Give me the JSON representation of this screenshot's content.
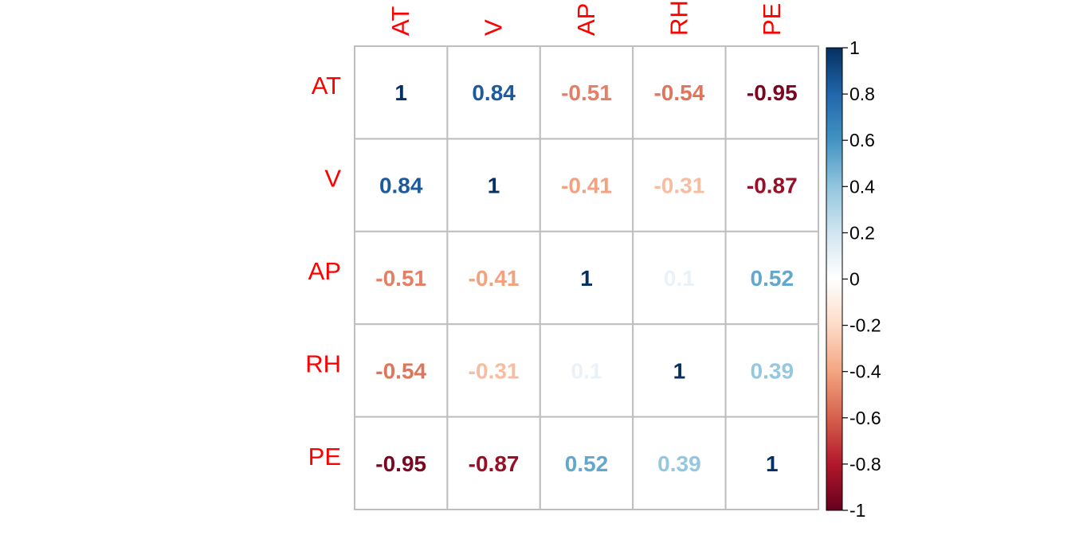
{
  "chart_data": {
    "type": "heatmap",
    "variables": [
      "AT",
      "V",
      "AP",
      "RH",
      "PE"
    ],
    "matrix": [
      [
        1,
        0.84,
        -0.51,
        -0.54,
        -0.95
      ],
      [
        0.84,
        1,
        -0.41,
        -0.31,
        -0.87
      ],
      [
        -0.51,
        -0.41,
        1,
        0.1,
        0.52
      ],
      [
        -0.54,
        -0.31,
        0.1,
        1,
        0.39
      ],
      [
        -0.95,
        -0.87,
        0.52,
        0.39,
        1
      ]
    ],
    "cell_labels": [
      [
        "1",
        "0.84",
        "-0.51",
        "-0.54",
        "-0.95"
      ],
      [
        "0.84",
        "1",
        "-0.41",
        "-0.31",
        "-0.87"
      ],
      [
        "-0.51",
        "-0.41",
        "1",
        "0.1",
        "0.52"
      ],
      [
        "-0.54",
        "-0.31",
        "0.1",
        "1",
        "0.39"
      ],
      [
        "-0.95",
        "-0.87",
        "0.52",
        "0.39",
        "1"
      ]
    ],
    "colorbar": {
      "range": [
        -1,
        1
      ],
      "tick_labels": [
        "1",
        "0.8",
        "0.6",
        "0.4",
        "0.2",
        "0",
        "-0.2",
        "-0.4",
        "-0.6",
        "-0.8",
        "-1"
      ],
      "tick_values": [
        1,
        0.8,
        0.6,
        0.4,
        0.2,
        0,
        -0.2,
        -0.4,
        -0.6,
        -0.8,
        -1
      ],
      "colors_low_to_high": [
        "#67001f",
        "#b2182b",
        "#d6604d",
        "#f4a582",
        "#fddbc7",
        "#ffffff",
        "#d1e5f0",
        "#92c5de",
        "#4393c3",
        "#2166ac",
        "#053061"
      ]
    },
    "label_color": "#ff0000",
    "grid": true,
    "legend": "right"
  }
}
